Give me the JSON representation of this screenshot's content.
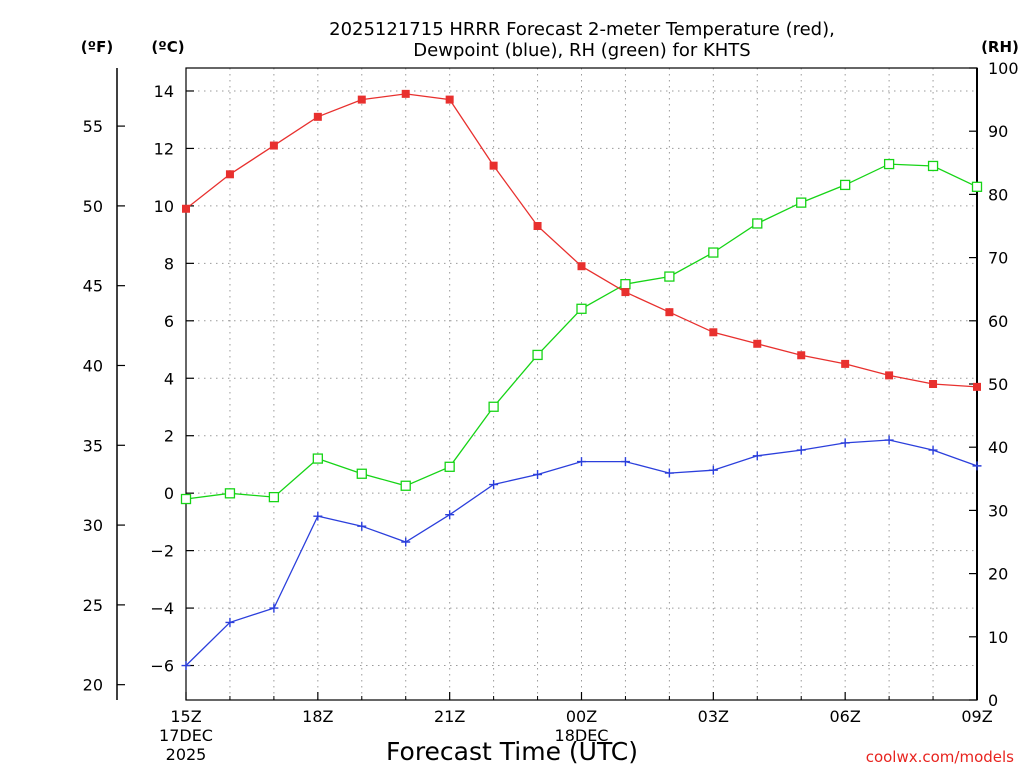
{
  "chart_data": {
    "type": "line",
    "title": "2025121715 HRRR Forecast 2-meter Temperature (red),",
    "subtitle": "Dewpoint (blue), RH (green) for KHTS",
    "xlabel": "Forecast Time (UTC)",
    "units": {
      "fahrenheit": "(ºF)",
      "celsius": "(ºC)",
      "rh": "(RH)"
    },
    "x_ticks": [
      {
        "hour": 0,
        "label": "15Z",
        "sub1": "17DEC",
        "sub2": "2025"
      },
      {
        "hour": 3,
        "label": "18Z",
        "sub1": "",
        "sub2": ""
      },
      {
        "hour": 6,
        "label": "21Z",
        "sub1": "",
        "sub2": ""
      },
      {
        "hour": 9,
        "label": "00Z",
        "sub1": "18DEC",
        "sub2": ""
      },
      {
        "hour": 12,
        "label": "03Z",
        "sub1": "",
        "sub2": ""
      },
      {
        "hour": 15,
        "label": "06Z",
        "sub1": "",
        "sub2": ""
      },
      {
        "hour": 18,
        "label": "09Z",
        "sub1": "",
        "sub2": ""
      }
    ],
    "x_hours": [
      0,
      1,
      2,
      3,
      4,
      5,
      6,
      7,
      8,
      9,
      10,
      11,
      12,
      13,
      14,
      15,
      16,
      17,
      18
    ],
    "celsius_axis": {
      "ylim": [
        -7.2,
        14.8
      ],
      "ticks": [
        -6,
        -4,
        -2,
        0,
        2,
        4,
        6,
        8,
        10,
        12,
        14
      ]
    },
    "fahrenheit_axis": {
      "ylim": [
        19.04,
        58.64
      ],
      "ticks": [
        20,
        25,
        30,
        35,
        40,
        45,
        50,
        55
      ]
    },
    "rh_axis": {
      "ylim": [
        0,
        100
      ],
      "ticks": [
        0,
        10,
        20,
        30,
        40,
        50,
        60,
        70,
        80,
        90,
        100
      ]
    },
    "grid": true,
    "series": [
      {
        "key": "temperature",
        "axis": "celsius",
        "color": "#e8302e",
        "marker": "filled-square",
        "values": [
          9.9,
          11.1,
          12.1,
          13.1,
          13.7,
          13.9,
          13.7,
          11.4,
          9.3,
          7.9,
          7.0,
          6.3,
          5.6,
          5.2,
          4.8,
          4.5,
          4.1,
          3.8,
          3.7
        ]
      },
      {
        "key": "dewpoint",
        "axis": "celsius",
        "color": "#2b3fdc",
        "marker": "plus",
        "values": [
          -6.0,
          -4.5,
          -4.0,
          -0.8,
          -1.15,
          -1.7,
          -0.75,
          0.3,
          0.65,
          1.1,
          1.1,
          0.7,
          0.8,
          1.3,
          1.5,
          1.75,
          1.85,
          1.5,
          0.95
        ]
      },
      {
        "key": "rh",
        "axis": "rh",
        "color": "#16d416",
        "marker": "open-square",
        "values": [
          31.8,
          32.7,
          32.1,
          38.2,
          35.8,
          33.9,
          36.9,
          46.4,
          54.6,
          61.9,
          65.8,
          67.0,
          70.8,
          75.4,
          78.7,
          81.5,
          84.8,
          84.5,
          81.2
        ]
      }
    ]
  },
  "credit": "coolwx.com/models"
}
